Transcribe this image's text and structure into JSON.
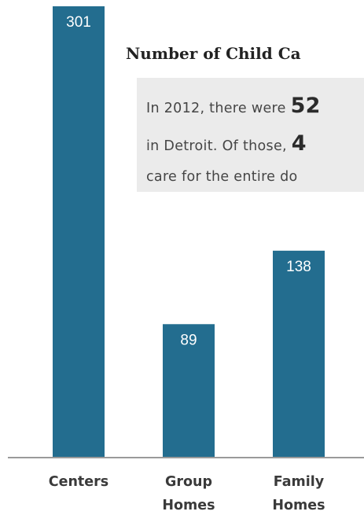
{
  "chart_data": {
    "type": "bar",
    "title": "Number of Child Ca",
    "categories": [
      [
        "Centers"
      ],
      [
        "Group",
        "Homes"
      ],
      [
        "Family",
        "Homes"
      ]
    ],
    "values": [
      301,
      89,
      138
    ],
    "ylim": [
      0,
      301
    ],
    "grid": false,
    "colors": {
      "bar": "#236d8f",
      "value_label": "#ffffff",
      "callout_bg": "#ebebeb"
    },
    "annotation": {
      "line1_prefix": "In 2012, there were ",
      "line1_big": "52",
      "line2_prefix": "in Detroit. Of those, ",
      "line2_big": "4",
      "line3": "care for the entire do"
    }
  }
}
